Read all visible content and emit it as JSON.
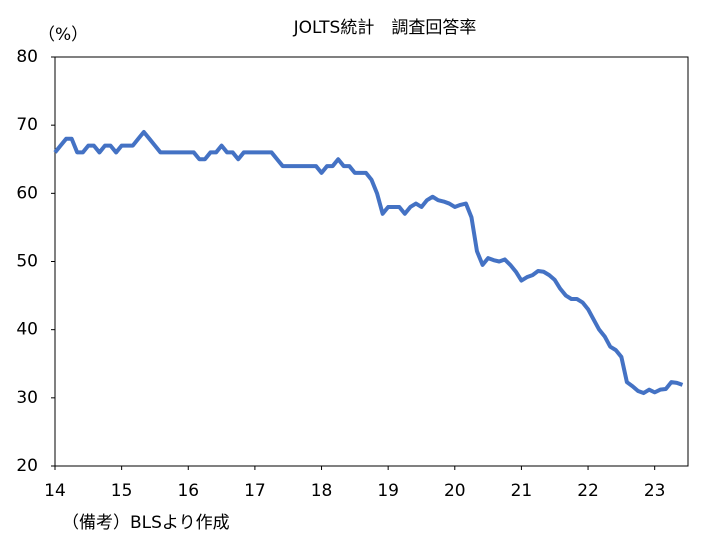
{
  "chart_data": {
    "type": "line",
    "title": "JOLTS統計　調査回答率",
    "y_unit": "（%）",
    "note": "（備考）BLSより作成",
    "x": [
      14,
      14.083,
      14.167,
      14.25,
      14.333,
      14.417,
      14.5,
      14.583,
      14.667,
      14.75,
      14.833,
      14.917,
      15,
      15.083,
      15.167,
      15.25,
      15.333,
      15.417,
      15.5,
      15.583,
      15.667,
      15.75,
      15.833,
      15.917,
      16,
      16.083,
      16.167,
      16.25,
      16.333,
      16.417,
      16.5,
      16.583,
      16.667,
      16.75,
      16.833,
      16.917,
      17,
      17.083,
      17.167,
      17.25,
      17.333,
      17.417,
      17.5,
      17.583,
      17.667,
      17.75,
      17.833,
      17.917,
      18,
      18.083,
      18.167,
      18.25,
      18.333,
      18.417,
      18.5,
      18.583,
      18.667,
      18.75,
      18.833,
      18.917,
      19,
      19.083,
      19.167,
      19.25,
      19.333,
      19.417,
      19.5,
      19.583,
      19.667,
      19.75,
      19.833,
      19.917,
      20,
      20.083,
      20.167,
      20.25,
      20.333,
      20.417,
      20.5,
      20.583,
      20.667,
      20.75,
      20.833,
      20.917,
      21,
      21.083,
      21.167,
      21.25,
      21.333,
      21.417,
      21.5,
      21.583,
      21.667,
      21.75,
      21.833,
      21.917,
      22,
      22.083,
      22.167,
      22.25,
      22.333,
      22.417,
      22.5,
      22.583,
      22.667,
      22.75,
      22.833,
      22.917,
      23,
      23.083,
      23.167,
      23.25,
      23.333,
      23.417
    ],
    "series": [
      {
        "color": "#4472c4",
        "values": [
          66,
          67,
          68,
          68,
          66,
          66,
          67,
          67,
          66,
          67,
          67,
          66,
          67,
          67,
          67,
          68,
          69,
          68,
          67,
          66,
          66,
          66,
          66,
          66,
          66,
          66,
          65,
          65,
          66,
          66,
          67,
          66,
          66,
          65,
          66,
          66,
          66,
          66,
          66,
          66,
          65,
          64,
          64,
          64,
          64,
          64,
          64,
          64,
          63,
          64,
          64,
          65,
          64,
          64,
          63,
          63,
          63,
          62,
          60,
          57,
          58,
          58,
          58,
          57,
          58,
          58.5,
          58,
          59,
          59.5,
          59,
          58.8,
          58.5,
          58,
          58.3,
          58.5,
          56.5,
          51.5,
          49.5,
          50.5,
          50.2,
          50,
          50.3,
          49.5,
          48.5,
          47.2,
          47.7,
          48,
          48.6,
          48.5,
          48,
          47.3,
          46,
          45,
          44.5,
          44.5,
          44,
          43,
          41.5,
          40,
          39,
          37.5,
          37,
          36,
          32.3,
          31.7,
          31,
          30.7,
          31.2,
          30.8,
          31.2,
          31.3,
          32.3,
          32.2,
          31.9
        ]
      }
    ],
    "xlim": [
      14,
      23.5
    ],
    "xticks": [
      14,
      15,
      16,
      17,
      18,
      19,
      20,
      21,
      22,
      23
    ],
    "ylim": [
      20,
      80
    ],
    "yticks": [
      20,
      30,
      40,
      50,
      60,
      70,
      80
    ]
  }
}
